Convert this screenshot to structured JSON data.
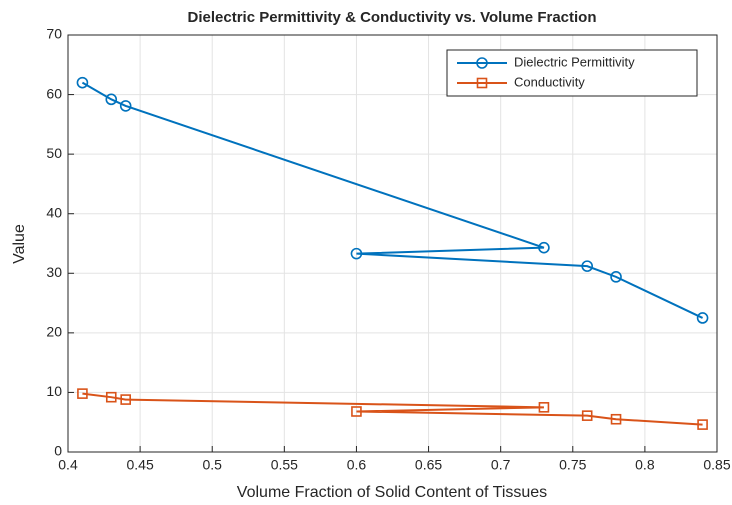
{
  "chart_data": {
    "type": "line",
    "title": "Dielectric Permittivity & Conductivity vs. Volume Fraction",
    "xlabel": "Volume Fraction of Solid Content of Tissues",
    "ylabel": "Value",
    "x": [
      0.41,
      0.43,
      0.44,
      0.73,
      0.6,
      0.76,
      0.78,
      0.84
    ],
    "series": [
      {
        "name": "Dielectric Permittivity",
        "color": "#0072bd",
        "marker": "circle",
        "values": [
          62,
          59.2,
          58.1,
          34.3,
          33.3,
          31.2,
          29.4,
          22.5
        ]
      },
      {
        "name": "Conductivity",
        "color": "#d95319",
        "marker": "square",
        "values": [
          9.8,
          9.2,
          8.8,
          7.5,
          6.8,
          6.1,
          5.5,
          4.6
        ]
      }
    ],
    "xlim": [
      0.4,
      0.85
    ],
    "xticks": [
      0.4,
      0.45,
      0.5,
      0.55,
      0.6,
      0.65,
      0.7,
      0.75,
      0.8,
      0.85
    ],
    "ylim": [
      0,
      70
    ],
    "yticks": [
      0,
      10,
      20,
      30,
      40,
      50,
      60,
      70
    ],
    "grid": true,
    "legend": "top-right"
  }
}
